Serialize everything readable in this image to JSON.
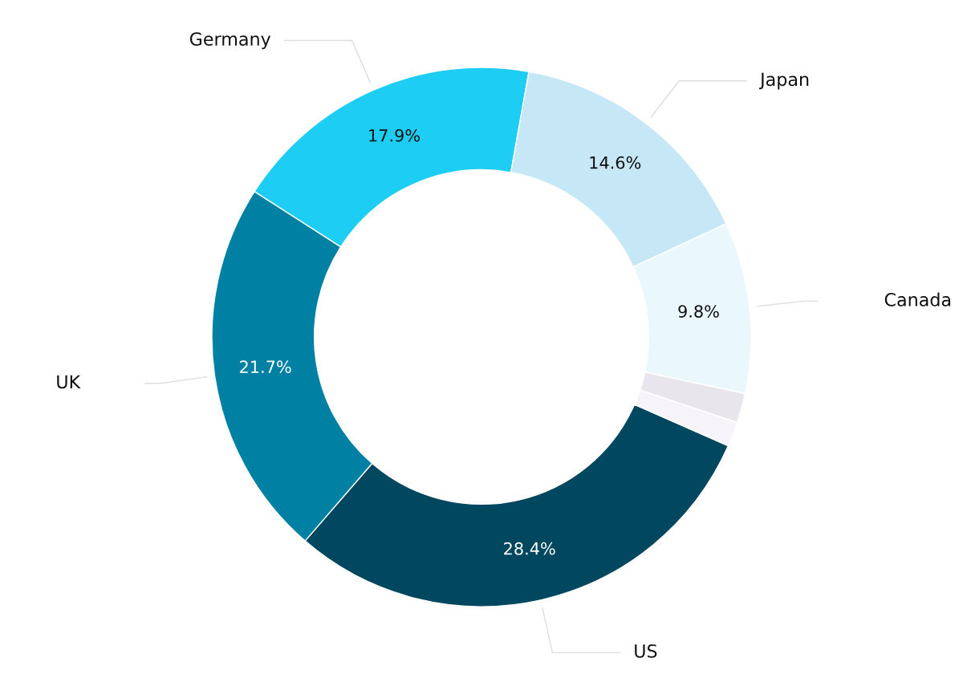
{
  "chart_data": {
    "type": "donut",
    "categories": [
      "US",
      "UK",
      "Germany",
      "Japan",
      "Canada",
      null,
      null
    ],
    "values": [
      28.4,
      21.7,
      17.9,
      14.6,
      9.8,
      1.7,
      1.4
    ],
    "value_labels": [
      "28.4%",
      "21.7%",
      "17.9%",
      "14.6%",
      "9.8%",
      null,
      null
    ],
    "colors": [
      "#00475f",
      "#0081a3",
      "#1ecdf3",
      "#c5e7f6",
      "#eaf8fe",
      "#e8e6ec",
      "#f6f4f8"
    ],
    "legend": false
  }
}
